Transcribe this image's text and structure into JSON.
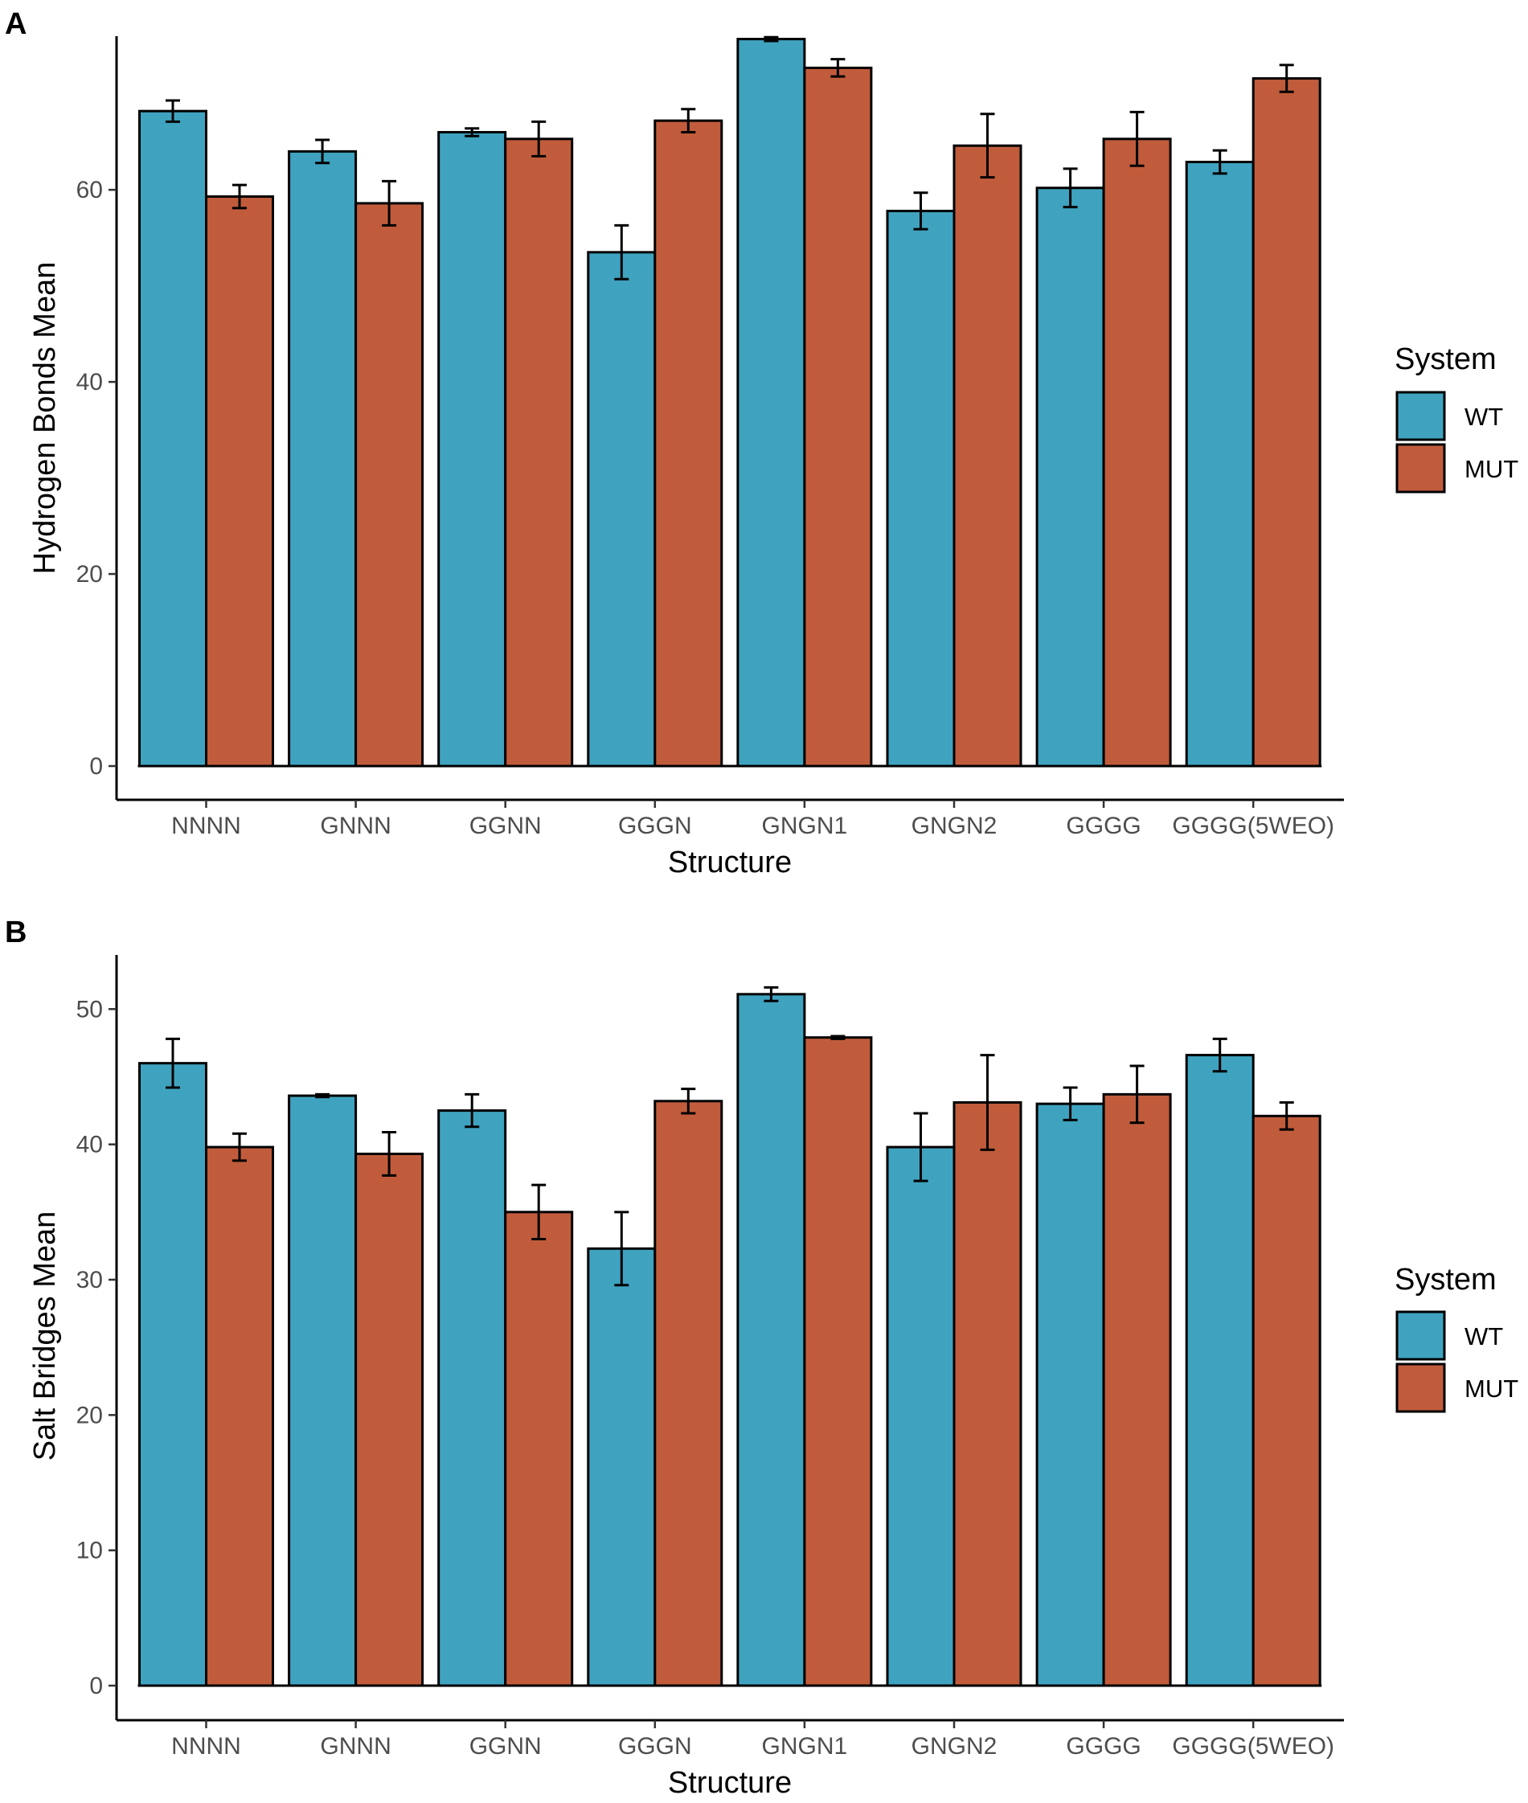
{
  "chart_data": [
    {
      "panel": "A",
      "type": "bar",
      "xlabel": "Structure",
      "ylabel": "Hydrogen Bonds Mean",
      "ylim": [
        0,
        76
      ],
      "yticks": [
        "0",
        "20",
        "40",
        "60"
      ],
      "categories": [
        "NNNN",
        "GNNN",
        "GGNN",
        "GGGN",
        "GNGN1",
        "GNGN2",
        "GGGG",
        "GGGG(5WEO)"
      ],
      "legend_title": "System",
      "legend_position": "right",
      "grid": false,
      "series": [
        {
          "name": "WT",
          "color": "#3fa3c0",
          "values": [
            68.2,
            64.0,
            66.0,
            53.5,
            75.7,
            57.8,
            60.2,
            62.9
          ],
          "errors": [
            1.1,
            1.2,
            0.4,
            2.8,
            0.2,
            1.9,
            2.0,
            1.2
          ]
        },
        {
          "name": "MUT",
          "color": "#c05c3c",
          "values": [
            59.3,
            58.6,
            65.3,
            67.2,
            72.7,
            64.6,
            65.3,
            71.6
          ],
          "errors": [
            1.2,
            2.3,
            1.8,
            1.2,
            0.9,
            3.3,
            2.8,
            1.4
          ]
        }
      ]
    },
    {
      "panel": "B",
      "type": "bar",
      "xlabel": "Structure",
      "ylabel": "Salt Bridges Mean",
      "ylim": [
        0,
        54
      ],
      "yticks": [
        "0",
        "10",
        "20",
        "30",
        "40",
        "50"
      ],
      "categories": [
        "NNNN",
        "GNNN",
        "GGNN",
        "GGGN",
        "GNGN1",
        "GNGN2",
        "GGGG",
        "GGGG(5WEO)"
      ],
      "legend_title": "System",
      "legend_position": "right",
      "grid": false,
      "series": [
        {
          "name": "WT",
          "color": "#3fa3c0",
          "values": [
            46.0,
            43.6,
            42.5,
            32.3,
            51.1,
            39.8,
            43.0,
            46.6
          ],
          "errors": [
            1.8,
            0.1,
            1.2,
            2.7,
            0.5,
            2.5,
            1.2,
            1.2
          ]
        },
        {
          "name": "MUT",
          "color": "#c05c3c",
          "values": [
            39.8,
            39.3,
            35.0,
            43.2,
            47.9,
            43.1,
            43.7,
            42.1
          ],
          "errors": [
            1.0,
            1.6,
            2.0,
            0.9,
            0.1,
            3.5,
            2.1,
            1.0
          ]
        }
      ]
    }
  ]
}
